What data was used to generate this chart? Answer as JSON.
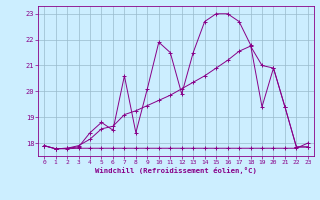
{
  "xlabel": "Windchill (Refroidissement éolien,°C)",
  "bg_color": "#cceeff",
  "grid_color": "#99bbcc",
  "line_color": "#880088",
  "axis_color": "#880088",
  "xlim": [
    -0.5,
    23.5
  ],
  "ylim": [
    17.5,
    23.3
  ],
  "xticks": [
    0,
    1,
    2,
    3,
    4,
    5,
    6,
    7,
    8,
    9,
    10,
    11,
    12,
    13,
    14,
    15,
    16,
    17,
    18,
    19,
    20,
    21,
    22,
    23
  ],
  "yticks": [
    18,
    19,
    20,
    21,
    22,
    23
  ],
  "line1_x": [
    0,
    1,
    2,
    3,
    4,
    5,
    6,
    7,
    8,
    9,
    10,
    11,
    12,
    13,
    14,
    15,
    16,
    17,
    18,
    19,
    20,
    21,
    22,
    23
  ],
  "line1_y": [
    17.9,
    17.78,
    17.78,
    17.8,
    17.8,
    17.8,
    17.8,
    17.8,
    17.8,
    17.8,
    17.8,
    17.8,
    17.8,
    17.8,
    17.8,
    17.8,
    17.8,
    17.8,
    17.8,
    17.8,
    17.8,
    17.8,
    17.8,
    18.0
  ],
  "line2_x": [
    0,
    1,
    2,
    3,
    4,
    5,
    6,
    7,
    8,
    9,
    10,
    11,
    12,
    13,
    14,
    15,
    16,
    17,
    18,
    19,
    20,
    21,
    22,
    23
  ],
  "line2_y": [
    17.9,
    17.78,
    17.8,
    17.85,
    18.4,
    18.8,
    18.5,
    20.6,
    18.4,
    20.1,
    21.9,
    21.5,
    19.9,
    21.5,
    22.7,
    23.0,
    23.0,
    22.7,
    21.8,
    19.4,
    20.9,
    19.4,
    17.85,
    17.85
  ],
  "line3_x": [
    0,
    1,
    2,
    3,
    4,
    5,
    6,
    7,
    8,
    9,
    10,
    11,
    12,
    13,
    14,
    15,
    16,
    17,
    18,
    19,
    20,
    21,
    22,
    23
  ],
  "line3_y": [
    17.9,
    17.78,
    17.8,
    17.9,
    18.15,
    18.55,
    18.65,
    19.1,
    19.25,
    19.45,
    19.65,
    19.85,
    20.1,
    20.35,
    20.6,
    20.9,
    21.2,
    21.55,
    21.75,
    21.0,
    20.9,
    19.4,
    17.85,
    17.85
  ]
}
